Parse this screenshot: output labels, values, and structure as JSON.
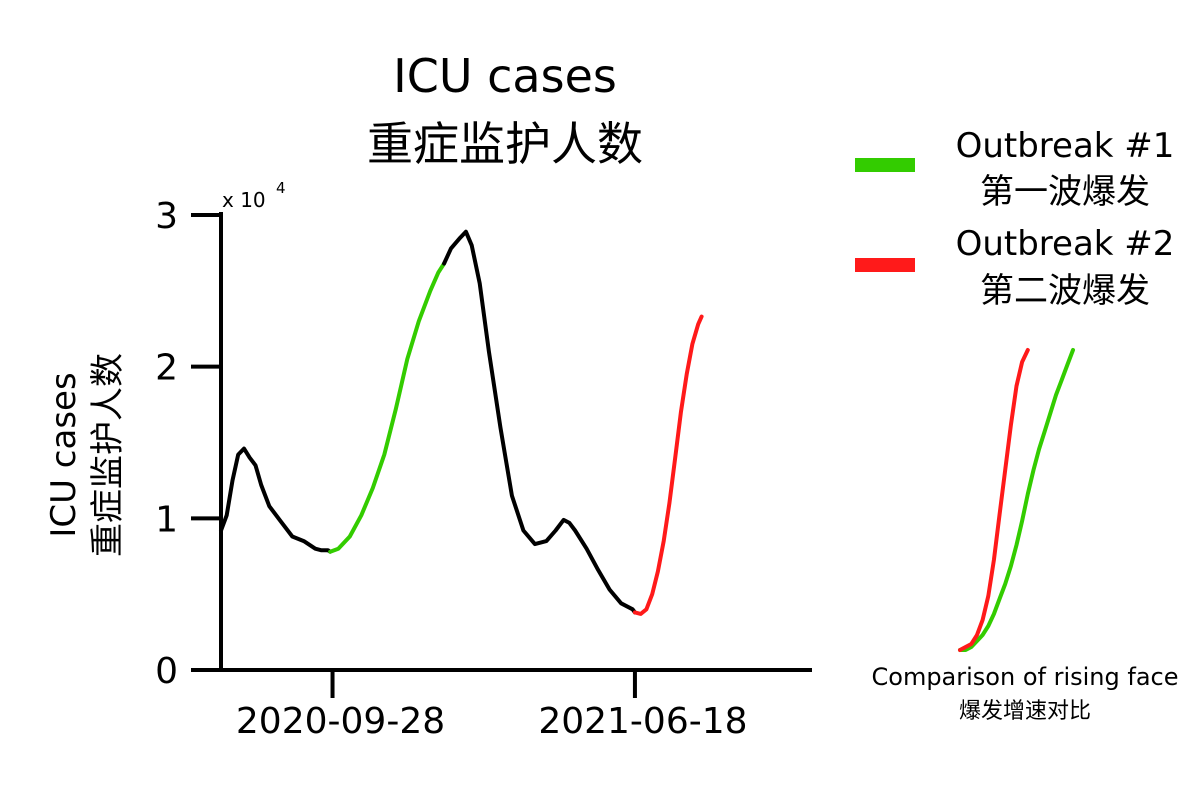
{
  "chart_data": [
    {
      "type": "line",
      "title": [
        "ICU cases",
        "重症监护人数"
      ],
      "ylabel": [
        "ICU cases",
        "重症监护人数"
      ],
      "xlabel": "",
      "y_multiplier": "x 10",
      "y_multiplier_exp": "4",
      "ylim": [
        0,
        3
      ],
      "yticks": [
        0,
        1,
        2,
        3
      ],
      "xlim": [
        "2020-06-23",
        "2021-11-19"
      ],
      "xticks": [
        "2020-09-28",
        "2021-06-18"
      ],
      "grid": false,
      "legend_position": "right",
      "series": [
        {
          "name": "",
          "role": "baseline",
          "color": "#000000",
          "x": [
            "2020-06-23",
            "2020-06-28",
            "2020-07-03",
            "2020-07-08",
            "2020-07-13",
            "2020-07-18",
            "2020-07-23",
            "2020-07-28",
            "2020-08-04",
            "2020-08-14",
            "2020-08-24",
            "2020-09-03",
            "2020-09-13",
            "2020-09-18",
            "2020-09-24",
            "2020-09-26"
          ],
          "y": [
            0.92,
            1.02,
            1.25,
            1.42,
            1.46,
            1.4,
            1.35,
            1.22,
            1.08,
            0.98,
            0.88,
            0.85,
            0.8,
            0.79,
            0.79,
            0.78
          ]
        },
        {
          "name": "Outbreak #1",
          "role": "outbreak1",
          "color": "#33cc00",
          "x": [
            "2020-09-26",
            "2020-10-03",
            "2020-10-13",
            "2020-10-23",
            "2020-11-02",
            "2020-11-12",
            "2020-11-22",
            "2020-12-02",
            "2020-12-12",
            "2020-12-22",
            "2020-12-29",
            "2021-01-03"
          ],
          "y": [
            0.78,
            0.8,
            0.88,
            1.02,
            1.2,
            1.42,
            1.72,
            2.05,
            2.3,
            2.5,
            2.62,
            2.68
          ]
        },
        {
          "name": "",
          "role": "baseline",
          "color": "#000000",
          "x": [
            "2021-01-03",
            "2021-01-09",
            "2021-01-17",
            "2021-01-22",
            "2021-01-27",
            "2021-02-03",
            "2021-02-11",
            "2021-02-21",
            "2021-03-03",
            "2021-03-13",
            "2021-03-23",
            "2021-04-02",
            "2021-04-10",
            "2021-04-17",
            "2021-04-22",
            "2021-04-27",
            "2021-05-07",
            "2021-05-17",
            "2021-05-27",
            "2021-06-06",
            "2021-06-16",
            "2021-06-18"
          ],
          "y": [
            2.68,
            2.78,
            2.85,
            2.89,
            2.8,
            2.55,
            2.1,
            1.6,
            1.15,
            0.92,
            0.83,
            0.85,
            0.92,
            0.99,
            0.97,
            0.92,
            0.8,
            0.66,
            0.53,
            0.44,
            0.4,
            0.38
          ]
        },
        {
          "name": "Outbreak #2",
          "role": "outbreak2",
          "color": "#ff1a1a",
          "x": [
            "2021-06-18",
            "2021-06-23",
            "2021-06-28",
            "2021-07-03",
            "2021-07-08",
            "2021-07-13",
            "2021-07-18",
            "2021-07-23",
            "2021-07-28",
            "2021-08-02",
            "2021-08-07",
            "2021-08-12",
            "2021-08-15"
          ],
          "y": [
            0.38,
            0.37,
            0.4,
            0.5,
            0.65,
            0.85,
            1.1,
            1.4,
            1.7,
            1.95,
            2.15,
            2.28,
            2.33
          ]
        }
      ]
    },
    {
      "type": "line",
      "role": "inset",
      "caption": [
        "Comparison of rising face",
        "爆发增速对比"
      ],
      "series": [
        {
          "name": "Outbreak #1",
          "color": "#33cc00",
          "x": [
            0,
            0.05,
            0.1,
            0.15,
            0.2,
            0.25,
            0.3,
            0.35,
            0.4,
            0.45,
            0.5,
            0.55,
            0.6,
            0.65,
            0.7,
            0.75,
            0.8,
            0.85,
            0.9,
            0.95,
            1.0
          ],
          "y": [
            0.0,
            0.0,
            0.01,
            0.03,
            0.05,
            0.08,
            0.12,
            0.17,
            0.22,
            0.28,
            0.35,
            0.43,
            0.52,
            0.6,
            0.67,
            0.73,
            0.79,
            0.85,
            0.9,
            0.95,
            1.0
          ]
        },
        {
          "name": "Outbreak #2",
          "color": "#ff1a1a",
          "x": [
            0,
            0.05,
            0.1,
            0.15,
            0.2,
            0.25,
            0.3,
            0.35,
            0.4,
            0.45,
            0.5,
            0.55,
            0.6
          ],
          "y": [
            0.0,
            0.01,
            0.02,
            0.05,
            0.1,
            0.18,
            0.3,
            0.45,
            0.6,
            0.75,
            0.88,
            0.96,
            1.0
          ]
        }
      ]
    }
  ],
  "legend": {
    "items": [
      {
        "label": "Outbreak #1",
        "sublabel": "第一波爆发",
        "color": "#33cc00"
      },
      {
        "label": "Outbreak #2",
        "sublabel": "第二波爆发",
        "color": "#ff1a1a"
      }
    ]
  }
}
